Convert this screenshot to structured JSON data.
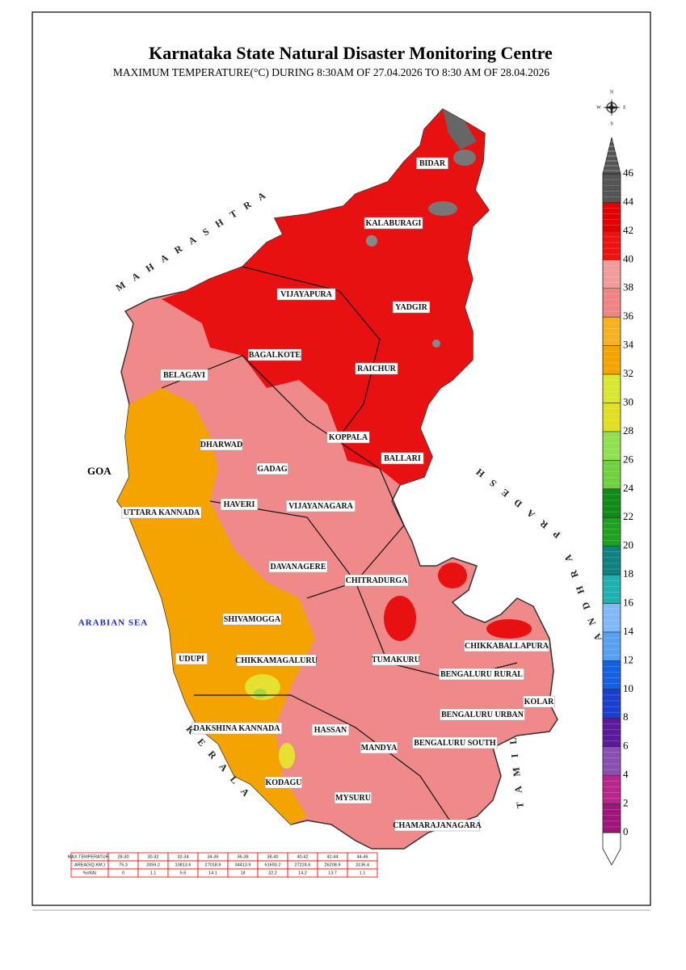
{
  "header": {
    "title": "Karnataka State Natural Disaster Monitoring Centre",
    "subtitle": "MAXIMUM TEMPERATURE(°C) DURING 8:30AM OF 27.04.2026 TO 8:30 AM OF 28.04.2026"
  },
  "compass": [
    "N",
    "E",
    "S",
    "W"
  ],
  "neighbors": [
    "MAHARASHTRA",
    "ANDHRA PRADESH",
    "KERALA",
    "TAMIL NADU",
    "GOA",
    "ARABIAN SEA"
  ],
  "districts": [
    "BIDAR",
    "KALABURAGI",
    "VIJAYAPURA",
    "YADGIR",
    "BAGALKOTE",
    "RAICHUR",
    "BELAGAVI",
    "KOPPALA",
    "BALLARI",
    "DHARWAD",
    "GADAG",
    "HAVERI",
    "VIJAYANAGARA",
    "UTTARA KANNADA",
    "DAVANAGERE",
    "CHITRADURGA",
    "SHIVAMOGGA",
    "UDUPI",
    "CHIKKAMAGALURU",
    "TUMAKURU",
    "CHIKKABALLAPURA",
    "BENGALURU RURAL",
    "KOLAR",
    "BENGALURU URBAN",
    "DAKSHINA KANNADA",
    "HASSAN",
    "MANDYA",
    "BENGALURU SOUTH",
    "KODAGU",
    "MYSURU",
    "CHAMARAJANAGARA"
  ],
  "legend": {
    "ticks": [
      0,
      2,
      4,
      6,
      8,
      10,
      12,
      14,
      16,
      18,
      20,
      22,
      24,
      26,
      28,
      30,
      32,
      34,
      36,
      38,
      40,
      42,
      44,
      46
    ],
    "colors": [
      "#a0157a",
      "#b8258c",
      "#8a4fb0",
      "#5a1a9a",
      "#1a3fd0",
      "#1560e0",
      "#5aa0f0",
      "#80b8f8",
      "#20b0b0",
      "#108080",
      "#20a020",
      "#108a18",
      "#70d040",
      "#90e050",
      "#e0e020",
      "#d8e830",
      "#f5a300",
      "#f7b020",
      "#f08484",
      "#f39a9a",
      "#ee1111",
      "#e20000",
      "#555555"
    ]
  },
  "table": {
    "row_labels": [
      "MAX.TEMPERATURE",
      "AREA(SQ.KM.)",
      "%of(A)"
    ],
    "ranges": [
      "28-30",
      "30-32",
      "32-34",
      "34-36",
      "36-38",
      "38-40",
      "40-42",
      "42-44",
      "44-46"
    ],
    "areas": [
      75.3,
      2059.2,
      10813.6,
      27018.9,
      34413.9,
      61693.2,
      27224.6,
      26208.9,
      2136.4
    ],
    "percents": [
      0,
      1.1,
      5.6,
      14.1,
      18,
      32.2,
      14.2,
      13.7,
      1.1
    ]
  }
}
